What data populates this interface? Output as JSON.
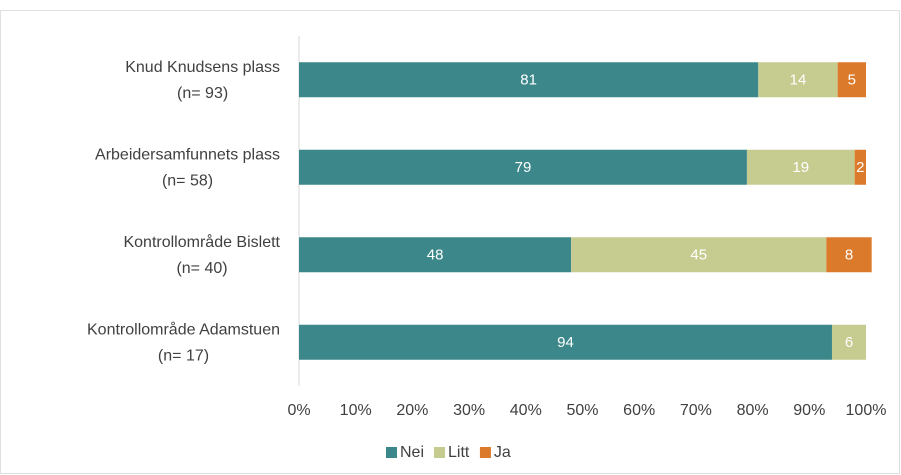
{
  "chart_data": {
    "type": "stacked-barh",
    "categories": [
      [
        "Knud Knudsens plass",
        "(n= 93)"
      ],
      [
        "Arbeidersamfunnets plass",
        "(n= 58)"
      ],
      [
        "Kontrollområde Bislett",
        "(n= 40)"
      ],
      [
        "Kontrollområde Adamstuen",
        "(n= 17)"
      ]
    ],
    "series": [
      {
        "name": "Nei",
        "color": "#3b8789",
        "values": [
          81,
          79,
          48,
          94
        ]
      },
      {
        "name": "Litt",
        "color": "#c6cc90",
        "values": [
          14,
          19,
          45,
          6
        ]
      },
      {
        "name": "Ja",
        "color": "#dc7a2b",
        "values": [
          5,
          2,
          8,
          null
        ]
      }
    ],
    "xlim": [
      0,
      100
    ],
    "xticks": [
      {
        "value": 0,
        "label": "0%"
      },
      {
        "value": 10,
        "label": "10%"
      },
      {
        "value": 20,
        "label": "20%"
      },
      {
        "value": 30,
        "label": "30%"
      },
      {
        "value": 40,
        "label": "40%"
      },
      {
        "value": 50,
        "label": "50%"
      },
      {
        "value": 60,
        "label": "60%"
      },
      {
        "value": 70,
        "label": "70%"
      },
      {
        "value": 80,
        "label": "80%"
      },
      {
        "value": 90,
        "label": "90%"
      },
      {
        "value": 100,
        "label": "100%"
      }
    ],
    "legend": "bottom"
  }
}
